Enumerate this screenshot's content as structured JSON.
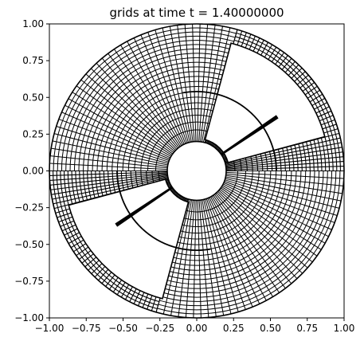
{
  "chart_data": {
    "type": "mesh",
    "title": "grids at time t =      1.40000000",
    "xlabel": "",
    "ylabel": "",
    "xlim": [
      -1.0,
      1.0
    ],
    "ylim": [
      -1.0,
      1.0
    ],
    "aspect": "equal",
    "grid": false,
    "xticks": [
      -1.0,
      -0.75,
      -0.5,
      -0.25,
      0.0,
      0.25,
      0.5,
      0.75,
      1.0
    ],
    "yticks": [
      -1.0,
      -0.75,
      -0.5,
      -0.25,
      0.0,
      0.25,
      0.5,
      0.75,
      1.0
    ],
    "xtick_labels": [
      "−1.00",
      "−0.75",
      "−0.50",
      "−0.25",
      "0.00",
      "0.25",
      "0.50",
      "0.75",
      "1.00"
    ],
    "ytick_labels": [
      "−1.00",
      "−0.75",
      "−0.50",
      "−0.25",
      "0.00",
      "0.25",
      "0.50",
      "0.75",
      "1.00"
    ],
    "annulus": {
      "inner_radius": 0.2,
      "outer_radius": 1.0
    },
    "mesh_color": "#000000",
    "meshed_sectors": [
      {
        "theta_start_deg": 0,
        "theta_end_deg": 74
      },
      {
        "theta_start_deg": 180,
        "theta_end_deg": 254
      }
    ],
    "fill_sectors": [
      {
        "theta_start_deg": 74,
        "theta_end_deg": 180
      },
      {
        "theta_start_deg": 254,
        "theta_end_deg": 360
      }
    ],
    "open_sectors": [
      {
        "theta_start_deg": 15,
        "theta_end_deg": 75,
        "r_inner": 0.22,
        "r_outer": 0.9
      },
      {
        "theta_start_deg": 195,
        "theta_end_deg": 255,
        "r_inner": 0.22,
        "r_outer": 0.9
      }
    ],
    "inner_arc": {
      "radius": 0.54,
      "theta_start_deg": 0,
      "theta_end_deg": 100
    },
    "inner_arc_2": {
      "radius": 0.54,
      "theta_start_deg": 180,
      "theta_end_deg": 280
    },
    "slits": [
      {
        "theta_deg": 34,
        "r_start": 0.2,
        "r_end": 0.66
      },
      {
        "theta_deg": 214,
        "r_start": 0.2,
        "r_end": 0.66
      }
    ]
  }
}
